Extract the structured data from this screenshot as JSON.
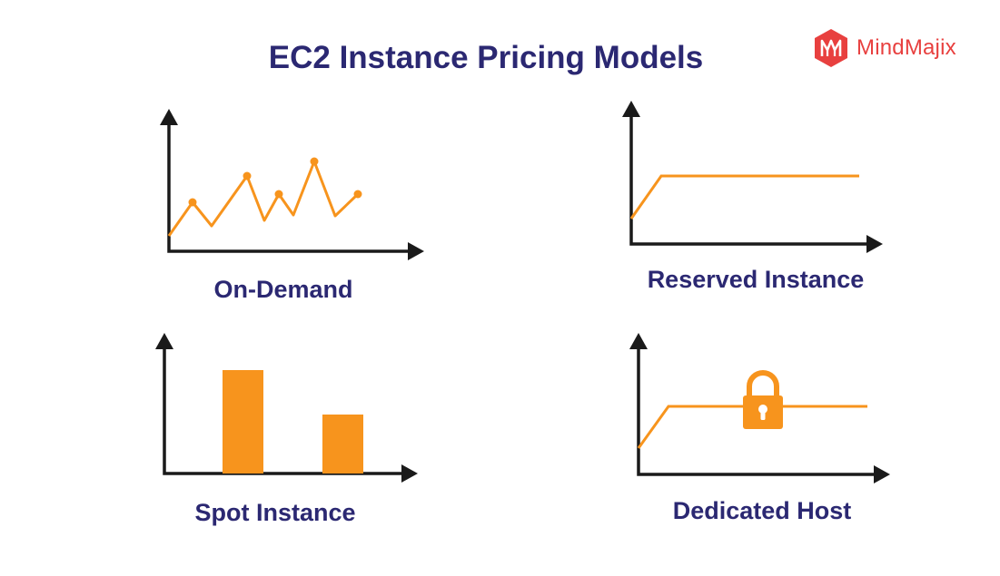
{
  "header": {
    "title": "EC2 Instance Pricing Models"
  },
  "logo": {
    "text": "MindMajix",
    "icon": "mindmajix-logo-icon",
    "color": "#e8403f"
  },
  "colors": {
    "accent": "#f7941d",
    "axis": "#1a1a1a",
    "text": "#2b2872"
  },
  "panels": [
    {
      "caption": "On-Demand",
      "graphic": "zigzag-line-with-points"
    },
    {
      "caption": "Reserved Instance",
      "graphic": "ramp-then-flat-line"
    },
    {
      "caption": "Spot Instance",
      "graphic": "two-bars"
    },
    {
      "caption": "Dedicated Host",
      "graphic": "ramp-then-flat-line-with-lock",
      "icon": "padlock-icon"
    }
  ]
}
